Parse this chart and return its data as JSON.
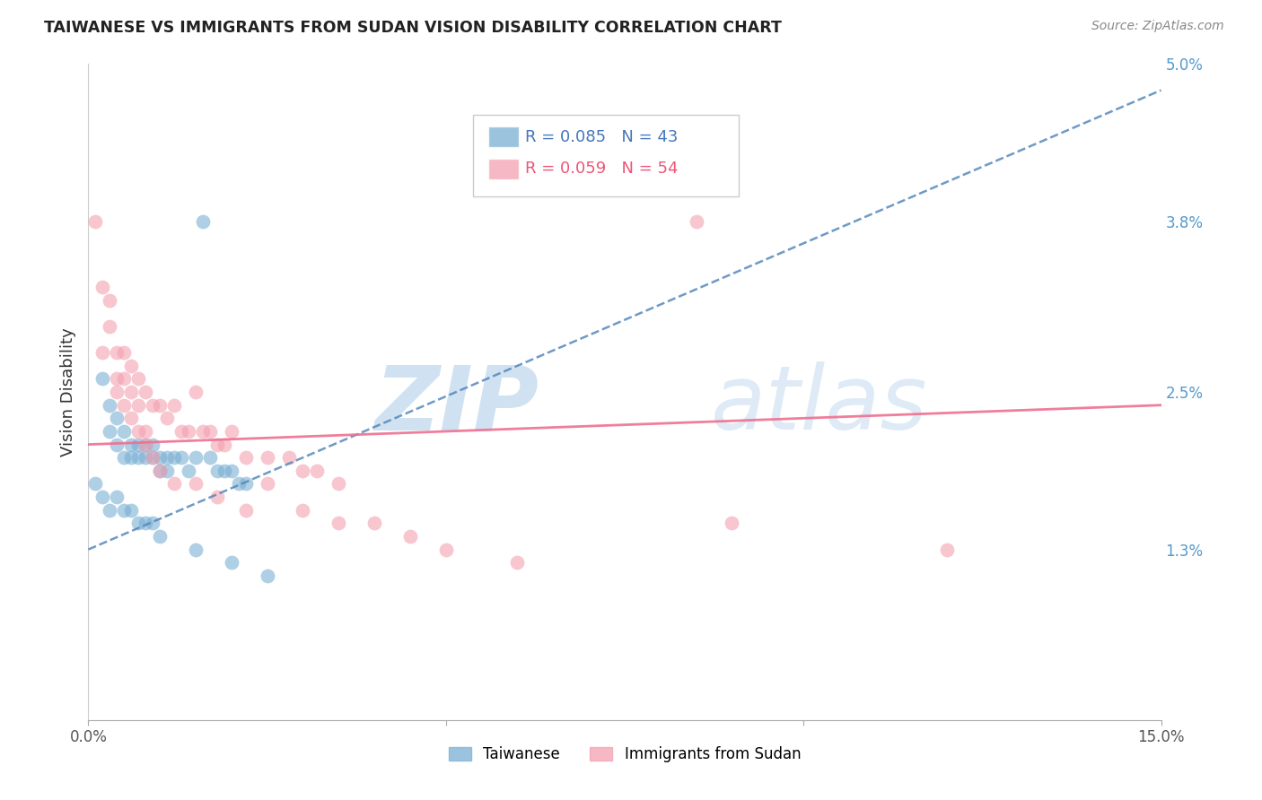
{
  "title": "TAIWANESE VS IMMIGRANTS FROM SUDAN VISION DISABILITY CORRELATION CHART",
  "source": "Source: ZipAtlas.com",
  "ylabel": "Vision Disability",
  "xlim": [
    0.0,
    0.15
  ],
  "ylim": [
    0.0,
    0.05
  ],
  "taiwanese_R": 0.085,
  "taiwanese_N": 43,
  "sudan_R": 0.059,
  "sudan_N": 54,
  "taiwanese_color": "#7BAFD4",
  "sudan_color": "#F4A0B0",
  "trendline_taiwanese_color": "#5588BB",
  "trendline_sudan_color": "#EE7090",
  "grid_color": "#CCCCCC",
  "right_tick_color": "#5599CC",
  "tw_trendline_start_y": 0.013,
  "tw_trendline_end_y": 0.048,
  "su_trendline_start_y": 0.021,
  "su_trendline_end_y": 0.024,
  "tw_x": [
    0.002,
    0.003,
    0.003,
    0.004,
    0.004,
    0.005,
    0.005,
    0.006,
    0.006,
    0.007,
    0.007,
    0.008,
    0.008,
    0.009,
    0.009,
    0.01,
    0.01,
    0.011,
    0.011,
    0.012,
    0.013,
    0.014,
    0.015,
    0.016,
    0.017,
    0.018,
    0.019,
    0.02,
    0.021,
    0.022,
    0.001,
    0.002,
    0.003,
    0.004,
    0.005,
    0.006,
    0.007,
    0.008,
    0.009,
    0.01,
    0.015,
    0.02,
    0.025
  ],
  "tw_y": [
    0.026,
    0.024,
    0.022,
    0.023,
    0.021,
    0.022,
    0.02,
    0.021,
    0.02,
    0.021,
    0.02,
    0.021,
    0.02,
    0.021,
    0.02,
    0.02,
    0.019,
    0.02,
    0.019,
    0.02,
    0.02,
    0.019,
    0.02,
    0.038,
    0.02,
    0.019,
    0.019,
    0.019,
    0.018,
    0.018,
    0.018,
    0.017,
    0.016,
    0.017,
    0.016,
    0.016,
    0.015,
    0.015,
    0.015,
    0.014,
    0.013,
    0.012,
    0.011
  ],
  "su_x": [
    0.002,
    0.003,
    0.004,
    0.004,
    0.005,
    0.005,
    0.006,
    0.006,
    0.007,
    0.007,
    0.008,
    0.008,
    0.009,
    0.01,
    0.011,
    0.012,
    0.013,
    0.014,
    0.015,
    0.016,
    0.017,
    0.018,
    0.019,
    0.02,
    0.022,
    0.025,
    0.028,
    0.03,
    0.032,
    0.035,
    0.001,
    0.002,
    0.003,
    0.004,
    0.005,
    0.006,
    0.007,
    0.008,
    0.009,
    0.01,
    0.012,
    0.015,
    0.018,
    0.022,
    0.025,
    0.03,
    0.035,
    0.04,
    0.045,
    0.05,
    0.06,
    0.085,
    0.09,
    0.12
  ],
  "su_y": [
    0.028,
    0.032,
    0.026,
    0.028,
    0.026,
    0.028,
    0.025,
    0.027,
    0.026,
    0.024,
    0.025,
    0.022,
    0.024,
    0.024,
    0.023,
    0.024,
    0.022,
    0.022,
    0.025,
    0.022,
    0.022,
    0.021,
    0.021,
    0.022,
    0.02,
    0.02,
    0.02,
    0.019,
    0.019,
    0.018,
    0.038,
    0.033,
    0.03,
    0.025,
    0.024,
    0.023,
    0.022,
    0.021,
    0.02,
    0.019,
    0.018,
    0.018,
    0.017,
    0.016,
    0.018,
    0.016,
    0.015,
    0.015,
    0.014,
    0.013,
    0.012,
    0.038,
    0.015,
    0.013
  ]
}
